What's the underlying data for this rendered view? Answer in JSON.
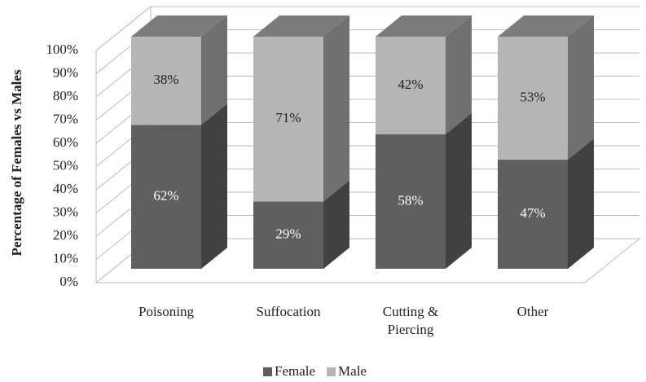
{
  "chart_data": {
    "type": "stacked_bar_3d",
    "y_label": "Percentage  of Females vs Males",
    "categories": [
      "Poisoning",
      "Suffocation",
      "Cutting & Piercing",
      "Other"
    ],
    "series": [
      {
        "name": "Female",
        "color": "#5f5f5f",
        "values": [
          62,
          29,
          58,
          47
        ],
        "value_labels": [
          "62%",
          "29%",
          "58%",
          "47%"
        ]
      },
      {
        "name": "Male",
        "color": "#b5b5b5",
        "values": [
          38,
          71,
          42,
          53
        ],
        "value_labels": [
          "38%",
          "71%",
          "42%",
          "53%"
        ]
      }
    ],
    "ylim": [
      0,
      100
    ],
    "yticks": [
      {
        "value": 0,
        "label": "0%"
      },
      {
        "value": 10,
        "label": "10%"
      },
      {
        "value": 20,
        "label": "20%"
      },
      {
        "value": 30,
        "label": "30%"
      },
      {
        "value": 40,
        "label": "40%"
      },
      {
        "value": 50,
        "label": "50%"
      },
      {
        "value": 60,
        "label": "60%"
      },
      {
        "value": 70,
        "label": "70%"
      },
      {
        "value": 80,
        "label": "80%"
      },
      {
        "value": 90,
        "label": "90%"
      },
      {
        "value": 100,
        "label": "100%"
      }
    ],
    "grid": true,
    "legend": "bottom"
  }
}
